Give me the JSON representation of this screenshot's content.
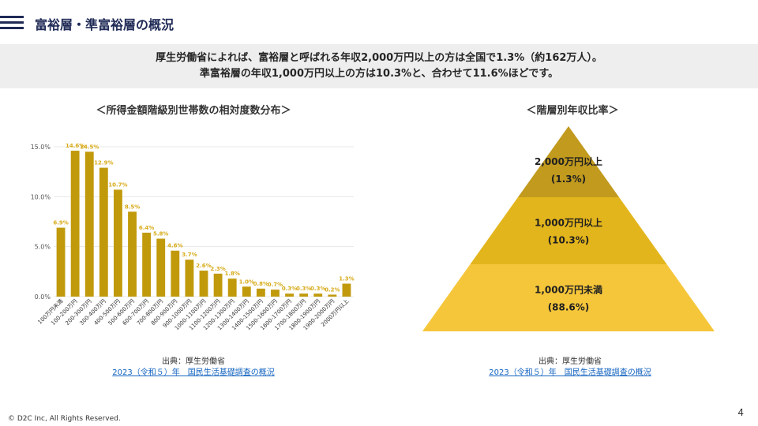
{
  "header": {
    "title": "富裕層・準富裕層の概況",
    "menu_icon": "hamburger-menu-icon"
  },
  "summary": {
    "line1": "厚生労働省によれば、富裕層と呼ばれる年収2,000万円以上の方は全国で1.3%（約162万人）。",
    "line2": "準富裕層の年収1,000万円以上の方は10.3%と、合わせて11.6%ほどです。"
  },
  "bar_chart": {
    "title": "＜所得金額階級別世帯数の相対度数分布＞"
  },
  "pyramid_chart": {
    "title": "＜階層別年収比率＞"
  },
  "sources": {
    "left": {
      "label": "出典：厚生労働省",
      "link_text": "2023（令和５）年　国民生活基礎調査の概況"
    },
    "right": {
      "label": "出典：厚生労働省",
      "link_text": "2023（令和５）年　国民生活基礎調査の概況"
    }
  },
  "footer": {
    "page_number": "4",
    "copyright": "© D2C Inc, All Rights Reserved."
  },
  "chart_data": [
    {
      "type": "bar",
      "title": "＜所得金額階級別世帯数の相対度数分布＞",
      "categories": [
        "100万円未満",
        "100-200万円",
        "200-300万円",
        "300-400万円",
        "400-500万円",
        "500-600万円",
        "600-700万円",
        "700-800万円",
        "800-900万円",
        "900-1000万円",
        "1000-1100万円",
        "1100-1200万円",
        "1200-1300万円",
        "1300-1400万円",
        "1400-1500万円",
        "1500-1600万円",
        "1600-1700万円",
        "1700-1800万円",
        "1800-1900万円",
        "1900-2000万円",
        "2000万円以上"
      ],
      "values": [
        6.9,
        14.6,
        14.5,
        12.9,
        10.7,
        8.5,
        6.4,
        5.8,
        4.6,
        3.7,
        2.6,
        2.3,
        1.8,
        1.0,
        0.8,
        0.7,
        0.3,
        0.3,
        0.3,
        0.2,
        1.3
      ],
      "value_labels": [
        "6.9%",
        "14.6%",
        "14.5%",
        "12.9%",
        "10.7%",
        "8.5%",
        "6.4%",
        "5.8%",
        "4.6%",
        "3.7%",
        "2.6%",
        "2.3%",
        "1.8%",
        "1.0%",
        "0.8%",
        "0.7%",
        "0.3%",
        "0.3%",
        "0.3%",
        "0.2%",
        "1.3%"
      ],
      "yticks": [
        0,
        5,
        10,
        15
      ],
      "ytick_labels": [
        "0.0%",
        "5.0%",
        "10.0%",
        "15.0%"
      ],
      "ylim": [
        0,
        15
      ],
      "grid": true,
      "bar_color": "#c19a0b",
      "label_color": "#d8ab1a"
    },
    {
      "type": "pyramid",
      "title": "＜階層別年収比率＞",
      "tiers": [
        {
          "label": "2,000万円以上",
          "value_label": "(1.3%)",
          "value": 1.3,
          "color": "#c19a1e"
        },
        {
          "label": "1,000万円以上",
          "value_label": "(10.3%)",
          "value": 10.3,
          "color": "#e3b51c"
        },
        {
          "label": "1,000万円未満",
          "value_label": "(88.6%)",
          "value": 88.6,
          "color": "#f5c63a"
        }
      ]
    }
  ]
}
